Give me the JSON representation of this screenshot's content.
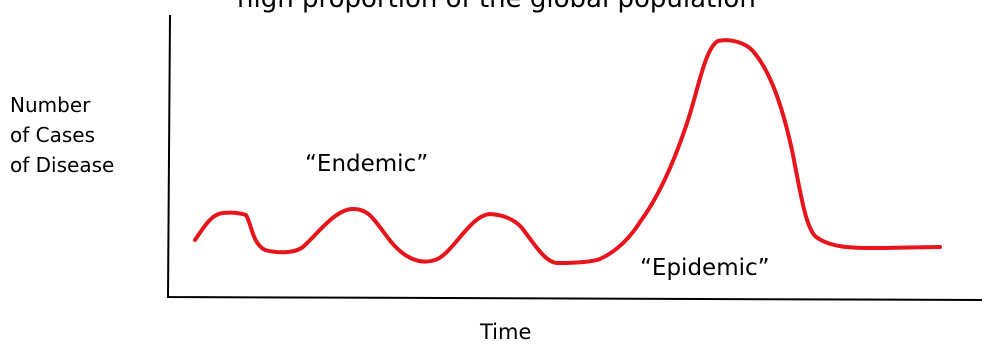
{
  "title": "high proportion of the global population",
  "axes": {
    "y_label_lines": [
      "Number",
      "of Cases",
      "of Disease"
    ],
    "x_label": "Time"
  },
  "annotations": {
    "endemic": "“Endemic”",
    "epidemic": "“Epidemic”"
  },
  "colors": {
    "curve": "#e8141c",
    "axes": "#000000",
    "text": "#000000"
  }
}
